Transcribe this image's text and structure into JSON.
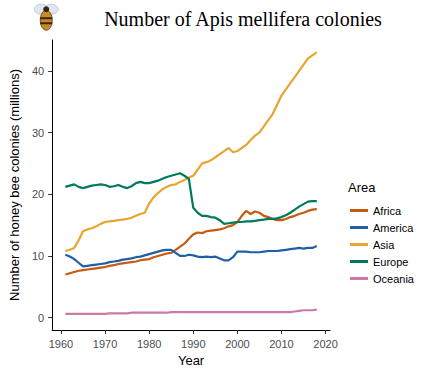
{
  "chart_data": {
    "type": "line",
    "title": "Number of Apis mellifera colonies",
    "x_label": "Year",
    "y_label": "Number of honey bee colonies (millions)",
    "legend_title": "Area",
    "legend": "right",
    "grid": false,
    "marker": "none",
    "line_style": "solid",
    "xlim": [
      1958,
      2021
    ],
    "xticks": [
      1960,
      1970,
      1980,
      1990,
      2000,
      2010,
      2020
    ],
    "ylim": [
      -2,
      45
    ],
    "yticks": [
      0,
      10,
      20,
      30,
      40
    ],
    "x": [
      1961,
      1962,
      1963,
      1964,
      1965,
      1966,
      1967,
      1968,
      1969,
      1970,
      1971,
      1972,
      1973,
      1974,
      1975,
      1976,
      1977,
      1978,
      1979,
      1980,
      1981,
      1982,
      1983,
      1984,
      1985,
      1986,
      1987,
      1988,
      1989,
      1990,
      1991,
      1992,
      1993,
      1994,
      1995,
      1996,
      1997,
      1998,
      1999,
      2000,
      2001,
      2002,
      2003,
      2004,
      2005,
      2006,
      2007,
      2008,
      2009,
      2010,
      2011,
      2012,
      2013,
      2014,
      2015,
      2016,
      2017,
      2018
    ],
    "series": [
      {
        "name": "Africa",
        "color": "#c55a11",
        "values": [
          7.0,
          7.2,
          7.4,
          7.6,
          7.7,
          7.8,
          7.9,
          8.0,
          8.1,
          8.2,
          8.4,
          8.5,
          8.7,
          8.8,
          8.9,
          9.0,
          9.1,
          9.3,
          9.4,
          9.5,
          9.8,
          10.0,
          10.2,
          10.4,
          10.5,
          11.0,
          11.5,
          12.0,
          12.8,
          13.5,
          13.8,
          13.7,
          14.0,
          14.1,
          14.2,
          14.3,
          14.5,
          14.8,
          15.0,
          15.5,
          16.5,
          17.3,
          16.8,
          17.2,
          17.0,
          16.5,
          16.3,
          16.0,
          15.8,
          15.8,
          16.0,
          16.3,
          16.5,
          16.8,
          17.0,
          17.3,
          17.5,
          17.6
        ]
      },
      {
        "name": "America",
        "color": "#1f5fa8",
        "values": [
          10.2,
          9.9,
          9.5,
          8.9,
          8.3,
          8.4,
          8.5,
          8.6,
          8.7,
          8.8,
          9.0,
          9.1,
          9.2,
          9.4,
          9.5,
          9.6,
          9.8,
          9.9,
          10.1,
          10.3,
          10.5,
          10.7,
          10.9,
          11.0,
          11.0,
          10.5,
          10.0,
          10.0,
          10.2,
          10.1,
          9.9,
          9.8,
          9.9,
          9.8,
          9.9,
          9.6,
          9.3,
          9.3,
          9.8,
          10.7,
          10.7,
          10.7,
          10.6,
          10.6,
          10.6,
          10.7,
          10.8,
          10.8,
          10.8,
          10.9,
          11.0,
          11.1,
          11.2,
          11.3,
          11.2,
          11.3,
          11.3,
          11.6
        ]
      },
      {
        "name": "Asia",
        "color": "#e8a631",
        "values": [
          10.8,
          11.0,
          11.3,
          12.5,
          14.0,
          14.3,
          14.5,
          14.8,
          15.2,
          15.5,
          15.6,
          15.7,
          15.8,
          15.9,
          16.0,
          16.2,
          16.5,
          16.8,
          17.0,
          18.5,
          19.5,
          20.2,
          20.8,
          21.2,
          21.5,
          21.6,
          22.0,
          22.3,
          22.7,
          23.0,
          24.0,
          25.0,
          25.2,
          25.5,
          26.0,
          26.5,
          27.0,
          27.5,
          26.8,
          27.0,
          27.5,
          28.0,
          28.8,
          29.5,
          30.0,
          31.0,
          32.0,
          33.0,
          34.5,
          36.0,
          37.0,
          38.0,
          39.0,
          40.0,
          41.0,
          42.0,
          42.5,
          43.0
        ]
      },
      {
        "name": "Europe",
        "color": "#00795c",
        "values": [
          21.2,
          21.4,
          21.6,
          21.2,
          21.0,
          21.2,
          21.4,
          21.5,
          21.6,
          21.5,
          21.2,
          21.3,
          21.5,
          21.2,
          21.0,
          21.3,
          21.8,
          22.0,
          21.8,
          21.8,
          22.0,
          22.2,
          22.5,
          22.8,
          23.0,
          23.2,
          23.4,
          23.0,
          22.5,
          17.8,
          17.0,
          16.5,
          16.5,
          16.3,
          16.2,
          15.8,
          15.2,
          15.3,
          15.4,
          15.5,
          15.5,
          15.6,
          15.6,
          15.7,
          15.8,
          15.9,
          16.0,
          16.0,
          16.1,
          16.3,
          16.6,
          17.0,
          17.5,
          18.0,
          18.4,
          18.8,
          18.9,
          18.9
        ]
      },
      {
        "name": "Oceania",
        "color": "#cc79a7",
        "values": [
          0.6,
          0.6,
          0.6,
          0.6,
          0.6,
          0.6,
          0.6,
          0.6,
          0.6,
          0.6,
          0.7,
          0.7,
          0.7,
          0.7,
          0.7,
          0.8,
          0.8,
          0.8,
          0.8,
          0.8,
          0.8,
          0.8,
          0.8,
          0.8,
          0.9,
          0.9,
          0.9,
          0.9,
          0.9,
          0.9,
          0.9,
          0.9,
          0.9,
          0.9,
          0.9,
          0.9,
          0.9,
          0.9,
          0.9,
          0.9,
          0.9,
          0.9,
          0.9,
          0.9,
          0.9,
          0.9,
          0.9,
          0.9,
          0.9,
          0.9,
          0.9,
          0.9,
          1.0,
          1.1,
          1.2,
          1.2,
          1.2,
          1.3
        ]
      }
    ]
  }
}
